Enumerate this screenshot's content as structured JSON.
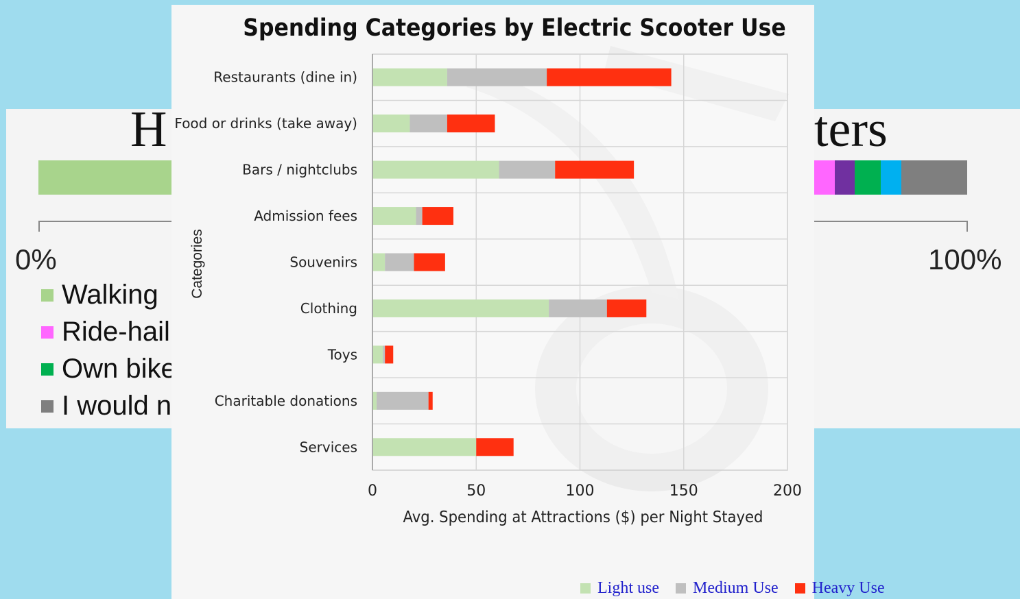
{
  "background_slide": {
    "title_left": "H",
    "title_right": "oters",
    "axis_min": "0%",
    "axis_max": "100%",
    "bar_segments": [
      {
        "name": "Walking",
        "color": "#a8d48c"
      },
      {
        "name": "Ride-hail",
        "color": "#ff66ff"
      },
      {
        "name": "other-purple",
        "color": "#7030a0"
      },
      {
        "name": "Own bike",
        "color": "#00b050"
      },
      {
        "name": "other-blue",
        "color": "#00b0f0"
      },
      {
        "name": "I would n",
        "color": "#7f7f7f"
      }
    ],
    "legend": [
      {
        "label": "Walking",
        "color": "#a8d48c"
      },
      {
        "label": "Ride-hail",
        "color": "#ff66ff"
      },
      {
        "label": "Own bike",
        "color": "#00b050"
      },
      {
        "label": "I would n",
        "color": "#7f7f7f"
      }
    ]
  },
  "chart_data": {
    "type": "bar",
    "orientation": "horizontal",
    "stacked": true,
    "title": "Spending Categories by Electric Scooter Use",
    "xlabel": "Avg. Spending at Attractions ($) per Night Stayed",
    "ylabel": "Categories",
    "xlim": [
      0,
      200
    ],
    "xticks": [
      "0",
      "50",
      "100",
      "150",
      "200"
    ],
    "grid": true,
    "legend_position": "bottom",
    "categories": [
      "Restaurants (dine in)",
      "Food or drinks (take away)",
      "Bars / nightclubs",
      "Admission fees",
      "Souvenirs",
      "Clothing",
      "Toys",
      "Charitable donations",
      "Services"
    ],
    "series": [
      {
        "name": "Light use",
        "color": "#c3e2b2",
        "values": [
          36,
          18,
          61,
          21,
          6,
          85,
          5,
          2,
          50
        ]
      },
      {
        "name": "Medium Use",
        "color": "#bfbfbf",
        "values": [
          48,
          18,
          27,
          3,
          14,
          28,
          1,
          25,
          0
        ]
      },
      {
        "name": "Heavy Use",
        "color": "#ff3010",
        "values": [
          60,
          23,
          38,
          15,
          15,
          19,
          4,
          2,
          18
        ]
      }
    ]
  }
}
